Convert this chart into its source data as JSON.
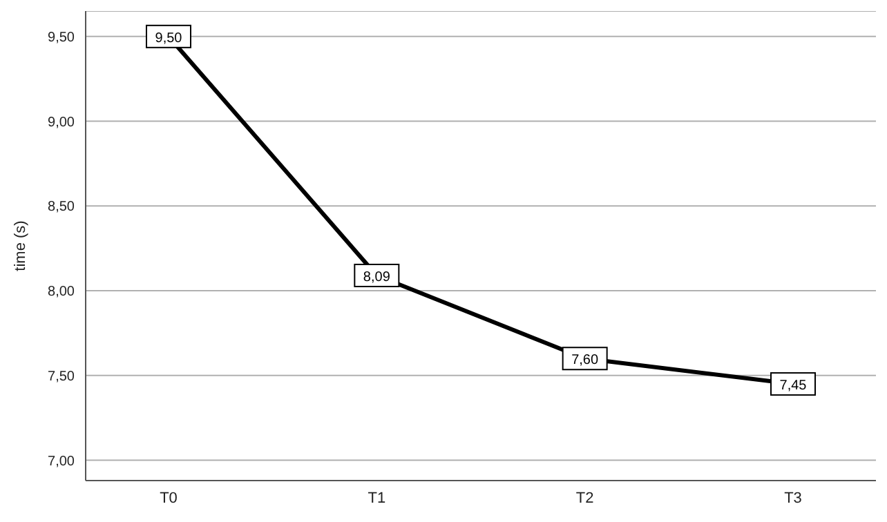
{
  "chart_data": {
    "type": "line",
    "ylabel": "time (s)",
    "categories": [
      "T0",
      "T1",
      "T2",
      "T3"
    ],
    "series": [
      {
        "color": "#000000",
        "values": [
          9.5,
          8.09,
          7.6,
          7.45
        ],
        "value_labels": [
          "9,50",
          "8,09",
          "7,60",
          "7,45"
        ]
      }
    ],
    "ylim": [
      6.88,
      9.65
    ],
    "yticks": [
      {
        "value": 7,
        "label": "7,00"
      },
      {
        "value": 7.5,
        "label": "7,50"
      },
      {
        "value": 8,
        "label": "8,00"
      },
      {
        "value": 8.5,
        "label": "8,50"
      },
      {
        "value": 9,
        "label": "9,00"
      },
      {
        "value": 9.5,
        "label": "9,50"
      }
    ],
    "grid": "y",
    "marker": "square",
    "line_style": "solid"
  }
}
